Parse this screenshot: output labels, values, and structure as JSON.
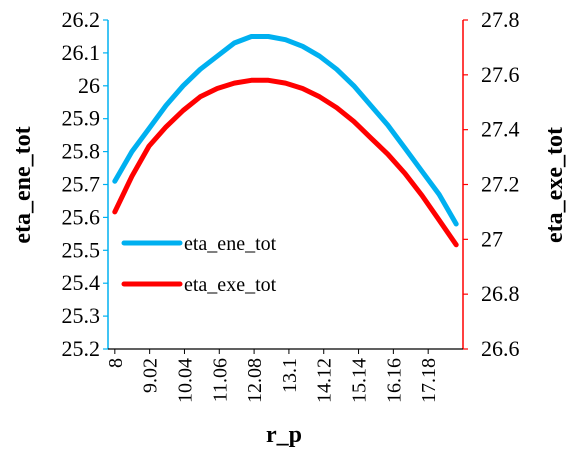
{
  "chart_data": {
    "type": "line",
    "title": "",
    "xlabel": "r_p",
    "ylabel_left": "eta_ene_tot",
    "ylabel_right": "eta_exe_tot",
    "x_tick_labels": [
      "8",
      "9.02",
      "10.04",
      "11.06",
      "12.08",
      "13.1",
      "14.12",
      "15.14",
      "16.16",
      "17.18"
    ],
    "y_left_tick_labels": [
      "25.2",
      "25.3",
      "25.4",
      "25.5",
      "25.6",
      "25.7",
      "25.8",
      "25.9",
      "26",
      "26.1",
      "26.2"
    ],
    "y_right_tick_labels": [
      "26.6",
      "26.8",
      "27",
      "27.2",
      "27.4",
      "27.6",
      "27.8"
    ],
    "ylim_left": [
      25.2,
      26.2
    ],
    "ylim_right": [
      26.6,
      27.8
    ],
    "xlim": [
      7.8,
      18.2
    ],
    "grid": false,
    "legend_position": "lower-left",
    "colors": {
      "eta_ene_tot": "#00b0f0",
      "eta_exe_tot": "#ff0000",
      "left_axis": "#00b0f0",
      "right_axis": "#ff0000"
    },
    "series": [
      {
        "name": "eta_ene_tot",
        "axis": "left",
        "x": [
          8,
          8.5,
          9,
          9.5,
          10,
          10.5,
          11,
          11.5,
          12,
          12.5,
          13,
          13.5,
          14,
          14.5,
          15,
          15.5,
          16,
          16.5,
          17,
          17.5,
          18
        ],
        "y": [
          25.71,
          25.8,
          25.87,
          25.94,
          26.0,
          26.05,
          26.09,
          26.13,
          26.15,
          26.15,
          26.14,
          26.12,
          26.09,
          26.05,
          26.0,
          25.94,
          25.88,
          25.81,
          25.74,
          25.67,
          25.58
        ]
      },
      {
        "name": "eta_exe_tot",
        "axis": "right",
        "x": [
          8,
          8.5,
          9,
          9.5,
          10,
          10.5,
          11,
          11.5,
          12,
          12.5,
          13,
          13.5,
          14,
          14.5,
          15,
          15.5,
          16,
          16.5,
          17,
          17.5,
          18
        ],
        "y": [
          27.1,
          27.23,
          27.34,
          27.41,
          27.47,
          27.52,
          27.55,
          27.57,
          27.58,
          27.58,
          27.57,
          27.55,
          27.52,
          27.48,
          27.43,
          27.37,
          27.31,
          27.24,
          27.16,
          27.07,
          26.98
        ]
      }
    ]
  }
}
